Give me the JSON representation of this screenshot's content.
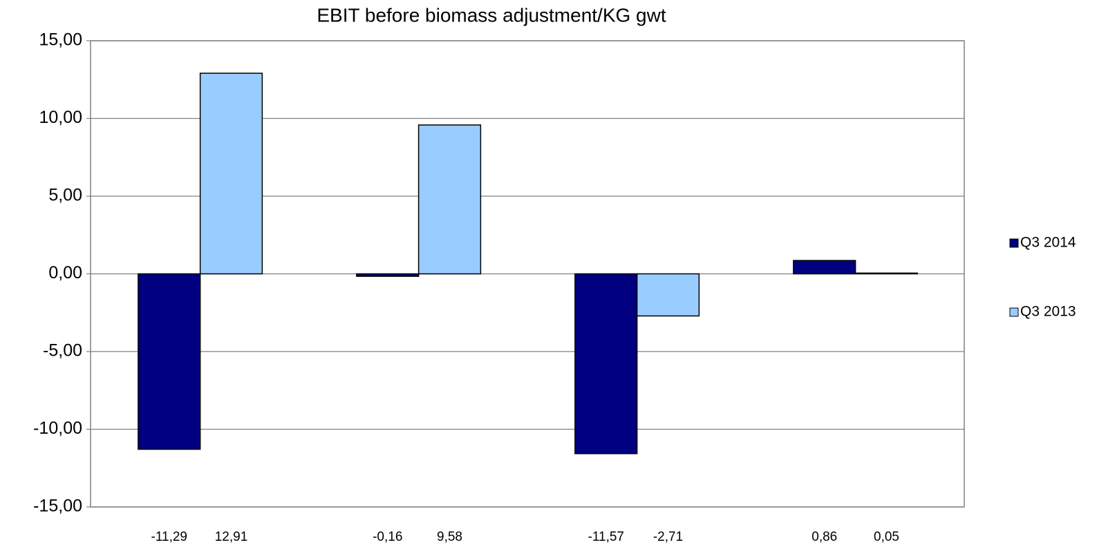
{
  "chart_data": {
    "type": "bar",
    "title": "EBIT before biomass adjustment/KG gwt",
    "categories": [
      null,
      null,
      null,
      null
    ],
    "series": [
      {
        "name": "Q3 2014",
        "color": "#000080",
        "values": [
          -11.29,
          -0.16,
          -11.57,
          0.86
        ],
        "value_labels": [
          "-11,29",
          "-0,16",
          "-11,57",
          "0,86"
        ]
      },
      {
        "name": "Q3 2013",
        "color": "#99ccff",
        "values": [
          12.91,
          9.58,
          -2.71,
          0.05
        ],
        "value_labels": [
          "12,91",
          "9,58",
          "-2,71",
          "0,05"
        ]
      }
    ],
    "ylim": [
      -15,
      15
    ],
    "yticks": [
      {
        "value": -15,
        "label": "-15,00"
      },
      {
        "value": -10,
        "label": "-10,00"
      },
      {
        "value": -5,
        "label": "-5,00"
      },
      {
        "value": 0,
        "label": "0,00"
      },
      {
        "value": 5,
        "label": "5,00"
      },
      {
        "value": 10,
        "label": "10,00"
      },
      {
        "value": 15,
        "label": "15,00"
      }
    ],
    "grid": true,
    "legend": "right"
  }
}
